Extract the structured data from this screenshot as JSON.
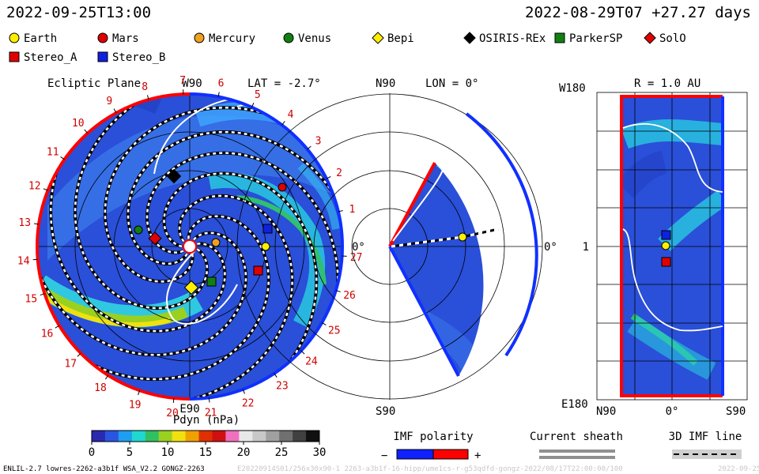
{
  "header": {
    "time_left": "2022-09-25T13:00",
    "time_right": "2022-08-29T07 +27.27 days"
  },
  "legend": [
    {
      "name": "Earth",
      "color": "#ffee00",
      "shape": "circle"
    },
    {
      "name": "Mars",
      "color": "#e00000",
      "shape": "circle"
    },
    {
      "name": "Mercury",
      "color": "#f0a020",
      "shape": "circle"
    },
    {
      "name": "Venus",
      "color": "#108010",
      "shape": "circle"
    },
    {
      "name": "Bepi",
      "color": "#ffee00",
      "shape": "diamond"
    },
    {
      "name": "OSIRIS-REx",
      "color": "#000000",
      "shape": "diamond"
    },
    {
      "name": "ParkerSP",
      "color": "#108010",
      "shape": "square"
    },
    {
      "name": "SolO",
      "color": "#e00000",
      "shape": "diamond"
    },
    {
      "name": "Stereo_A",
      "color": "#e00000",
      "shape": "square"
    },
    {
      "name": "Stereo_B",
      "color": "#1020e0",
      "shape": "square"
    }
  ],
  "ecliptic": {
    "title": "Ecliptic Plane",
    "lat_label": "LAT = -2.7°",
    "top_label": "W90",
    "bottom_label": "E90",
    "right_label": "0°",
    "day_ticks": [
      "1",
      "2",
      "3",
      "4",
      "5",
      "6",
      "7",
      "8",
      "9",
      "10",
      "11",
      "12",
      "13",
      "14",
      "15",
      "16",
      "17",
      "18",
      "19",
      "20",
      "21",
      "22",
      "23",
      "24",
      "25",
      "26",
      "27"
    ]
  },
  "meridional": {
    "title": "LON = 0°",
    "top_label": "N90",
    "bottom_label": "S90",
    "right_label": "0°"
  },
  "radial": {
    "title": "R = 1.0 AU",
    "top_label": "W180",
    "mid_label": "1",
    "bottom_label": "E180",
    "x_left": "N90",
    "x_mid": "0°",
    "x_right": "S90"
  },
  "colorbar": {
    "title": "Pdyn (nPa)",
    "ticks": [
      "0",
      "5",
      "10",
      "15",
      "20",
      "25",
      "30"
    ],
    "colors": [
      "#2a2ab0",
      "#2a55e0",
      "#1e9ef0",
      "#20d8d0",
      "#30c060",
      "#9ad020",
      "#f0e010",
      "#f0a000",
      "#e03000",
      "#d01010",
      "#f070c0",
      "#e8e8e8",
      "#c8c8c8",
      "#a0a0a0",
      "#707070",
      "#404040",
      "#101010"
    ]
  },
  "imf_polarity": {
    "title": "IMF polarity",
    "minus": "−",
    "plus": "+"
  },
  "current_sheath": {
    "title": "Current sheath"
  },
  "imf_line": {
    "title": "3D IMF line"
  },
  "footer": {
    "left": "ENLIL-2.7 lowres-2262-a3b1f WSA_V2.2 GONGZ-2263",
    "faint": "E20220914S01/256x30x90-1 2263-a3b1f-16-hipp/ume1cs-r-g53qdfd-gongz-2022/08/17T22:00:00/100",
    "right": "2022-09-25"
  },
  "chart_data": {
    "type": "heatmap",
    "description_fields": [
      "Pdyn (nPa)"
    ],
    "colorbar_range": [
      0,
      30
    ],
    "colorbar_ticks": [
      0,
      5,
      10,
      15,
      20,
      25,
      30
    ],
    "panels": [
      "Ecliptic Plane",
      "LON = 0°",
      "R = 1.0 AU"
    ]
  }
}
